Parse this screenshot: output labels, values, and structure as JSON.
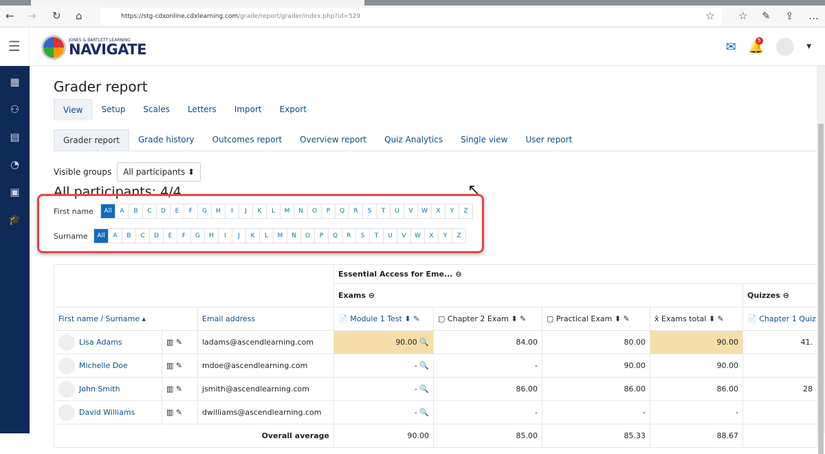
{
  "browser": {
    "url_host": "https://stg-cdxonline.cdxlearning.com",
    "url_path": "/grade/report/grader/index.php?id=529"
  },
  "header": {
    "logo_small": "JONES & BARTLETT LEARNING",
    "logo_big": "NAVIGATE",
    "notification_count": "5"
  },
  "page": {
    "title": "Grader report",
    "tabs": [
      "View",
      "Setup",
      "Scales",
      "Letters",
      "Import",
      "Export"
    ],
    "subtabs": [
      "Grader report",
      "Grade history",
      "Outcomes report",
      "Overview report",
      "Quiz Analytics",
      "Single view",
      "User report"
    ],
    "visible_groups_label": "Visible groups",
    "visible_groups_value": "All participants",
    "participants": "All participants: 4/4",
    "first_name_label": "First name",
    "surname_label": "Surname",
    "letters": [
      "All",
      "A",
      "B",
      "C",
      "D",
      "E",
      "F",
      "G",
      "H",
      "I",
      "J",
      "K",
      "L",
      "M",
      "N",
      "O",
      "P",
      "Q",
      "R",
      "S",
      "T",
      "U",
      "V",
      "W",
      "X",
      "Y",
      "Z"
    ]
  },
  "grid": {
    "course": "Essential Access for Eme...",
    "category_exams": "Exams",
    "category_quizzes": "Quizzes",
    "col_name": "First name / Surname",
    "col_email": "Email address",
    "columns": [
      "Module 1 Test",
      "Chapter 2 Exam",
      "Practical Exam",
      "Exams total",
      "Chapter 1 Quiz"
    ],
    "rows": [
      {
        "name": "Lisa Adams",
        "email": "ladams@ascendlearning.com",
        "grades": [
          "90.00",
          "84.00",
          "80.00",
          "90.00",
          "41."
        ]
      },
      {
        "name": "Michelle Doe",
        "email": "mdoe@ascendlearning.com",
        "grades": [
          "-",
          "-",
          "90.00",
          "90.00",
          ""
        ]
      },
      {
        "name": "John Smith",
        "email": "jsmith@ascendlearning.com",
        "grades": [
          "-",
          "86.00",
          "86.00",
          "86.00",
          "28"
        ]
      },
      {
        "name": "David Williams",
        "email": "dwilliams@ascendlearning.com",
        "grades": [
          "-",
          "-",
          "-",
          "-",
          ""
        ]
      }
    ],
    "average_label": "Overall average",
    "averages": [
      "90.00",
      "85.00",
      "85.33",
      "88.67",
      ""
    ]
  },
  "colors": {
    "sidebar": "#0e2a56",
    "link": "#0f6cbf",
    "highlight": "#f5deaa",
    "alpha_outline": "#e44444"
  }
}
